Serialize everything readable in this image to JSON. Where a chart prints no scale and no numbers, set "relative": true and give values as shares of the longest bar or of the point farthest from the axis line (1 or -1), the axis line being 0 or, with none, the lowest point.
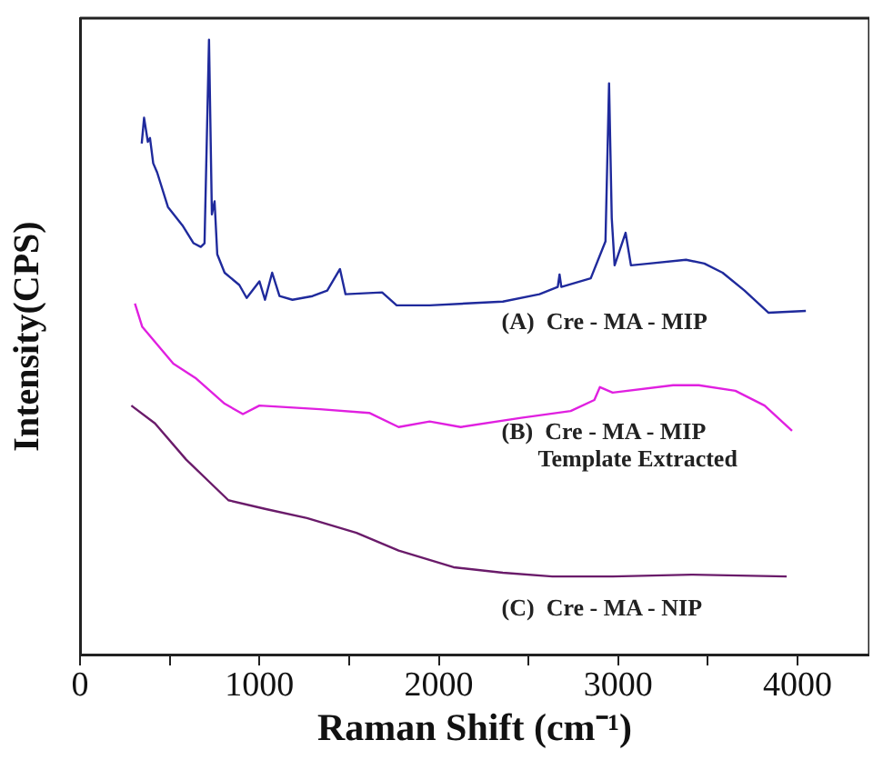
{
  "chart_data": {
    "type": "line",
    "relative": true,
    "xlabel": "Raman Shift (cm⁻¹)",
    "ylabel": "Intensity(CPS)",
    "xlim": [
      0,
      4400
    ],
    "xticks": [
      0,
      {
        "value": 500,
        "label": null
      },
      1000,
      {
        "value": 1500,
        "label": null
      },
      2000,
      {
        "value": 2500,
        "label": null
      },
      3000,
      {
        "value": 3500,
        "label": null
      },
      4000
    ],
    "grid": false,
    "legend": false,
    "marker": "none",
    "line_style": "solid",
    "tick_labels": "x",
    "series": [
      {
        "name": "(A)  Cre - MA - MIP",
        "color": "#1f2a9c",
        "x": [
          344,
          357,
          378,
          390,
          408,
          430,
          490,
          571,
          633,
          673,
          694,
          719,
          735,
          750,
          765,
          806,
          888,
          929,
          1000,
          1031,
          1071,
          1112,
          1184,
          1296,
          1378,
          1449,
          1480,
          1684,
          1765,
          1949,
          2153,
          2357,
          2561,
          2663,
          2673,
          2683,
          2847,
          2929,
          2949,
          2964,
          2980,
          3041,
          3071,
          3173,
          3378,
          3480,
          3582,
          3704,
          3837,
          4046
        ],
        "values": [
          0.831,
          0.873,
          0.834,
          0.84,
          0.799,
          0.784,
          0.728,
          0.698,
          0.669,
          0.663,
          0.669,
          1.0,
          0.716,
          0.737,
          0.651,
          0.621,
          0.601,
          0.58,
          0.607,
          0.577,
          0.621,
          0.583,
          0.577,
          0.583,
          0.592,
          0.627,
          0.586,
          0.589,
          0.568,
          0.568,
          0.571,
          0.574,
          0.586,
          0.598,
          0.618,
          0.598,
          0.612,
          0.672,
          0.929,
          0.71,
          0.633,
          0.686,
          0.633,
          0.636,
          0.642,
          0.636,
          0.621,
          0.592,
          0.556,
          0.559
        ]
      },
      {
        "name": "(B)  Cre - MA - MIP\nTemplate Extracted",
        "color": "#e020e0",
        "x": [
          306,
          347,
          520,
          643,
          806,
          908,
          1000,
          1337,
          1612,
          1776,
          1949,
          2122,
          2459,
          2735,
          2867,
          2898,
          2969,
          3306,
          3449,
          3653,
          3816,
          3969
        ],
        "values": [
          0.571,
          0.533,
          0.473,
          0.45,
          0.408,
          0.391,
          0.405,
          0.399,
          0.393,
          0.37,
          0.379,
          0.37,
          0.385,
          0.396,
          0.414,
          0.435,
          0.426,
          0.438,
          0.438,
          0.429,
          0.405,
          0.364
        ]
      },
      {
        "name": "(C)  Cre - MA - NIP",
        "color": "#6a1b6a",
        "x": [
          286,
          418,
          592,
          827,
          1031,
          1265,
          1541,
          1776,
          2082,
          2357,
          2633,
          2969,
          3408,
          3939
        ],
        "values": [
          0.405,
          0.376,
          0.317,
          0.251,
          0.237,
          0.222,
          0.198,
          0.169,
          0.142,
          0.133,
          0.127,
          0.127,
          0.13,
          0.127
        ]
      }
    ]
  }
}
